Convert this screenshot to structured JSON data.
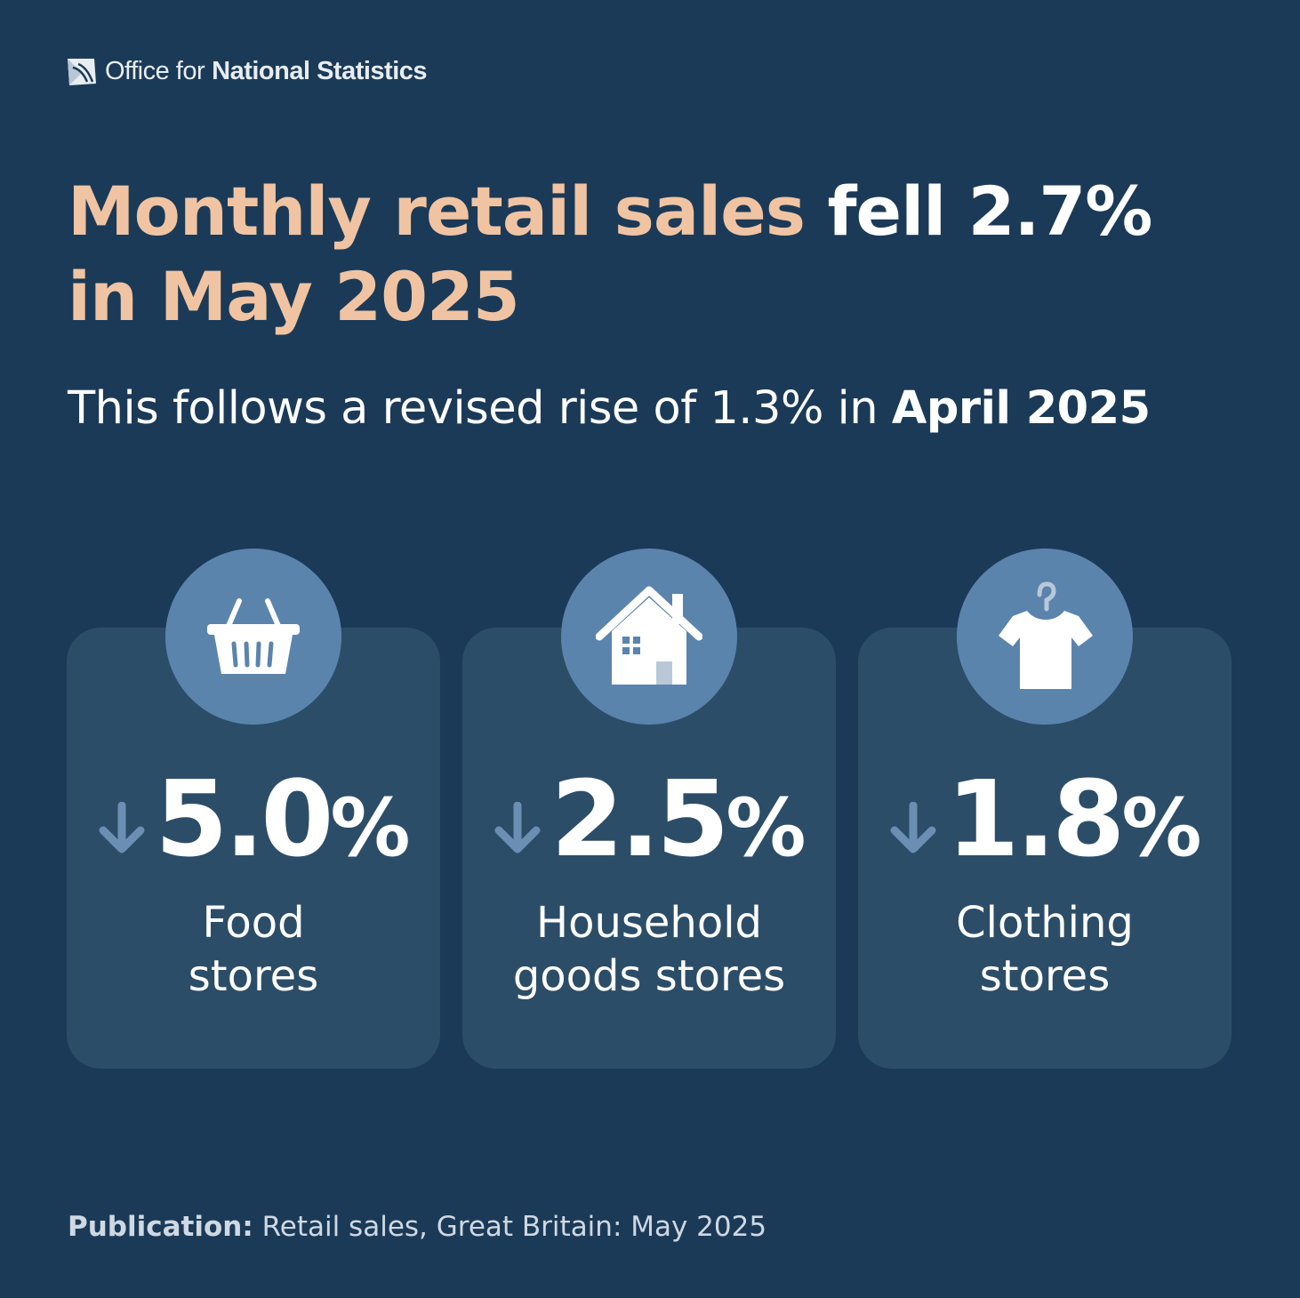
{
  "brand": {
    "prefix": "Office for",
    "name": "National Statistics",
    "logo_icon": "ons-logo-icon"
  },
  "headline": {
    "highlight": "Monthly retail sales",
    "rest_line1": " fell 2.7%",
    "line2": "in May 2025"
  },
  "subtitle": {
    "text": "This follows a revised rise of 1.3% in ",
    "bold": "April 2025"
  },
  "cards": [
    {
      "icon": "shopping-basket-icon",
      "direction": "down",
      "value": "5.0",
      "unit": "%",
      "label_line1": "Food",
      "label_line2": "stores"
    },
    {
      "icon": "house-icon",
      "direction": "down",
      "value": "2.5",
      "unit": "%",
      "label_line1": "Household",
      "label_line2": "goods stores"
    },
    {
      "icon": "t-shirt-icon",
      "direction": "down",
      "value": "1.8",
      "unit": "%",
      "label_line1": "Clothing",
      "label_line2": "stores"
    }
  ],
  "footer": {
    "label": "Publication:",
    "text": " Retail sales, Great Britain: May 2025"
  },
  "colors": {
    "background": "#1b3a57",
    "card": "#2c4d68",
    "icon_circle": "#5b84ad",
    "highlight": "#f0c4a2",
    "arrow": "#6b8eb3"
  }
}
